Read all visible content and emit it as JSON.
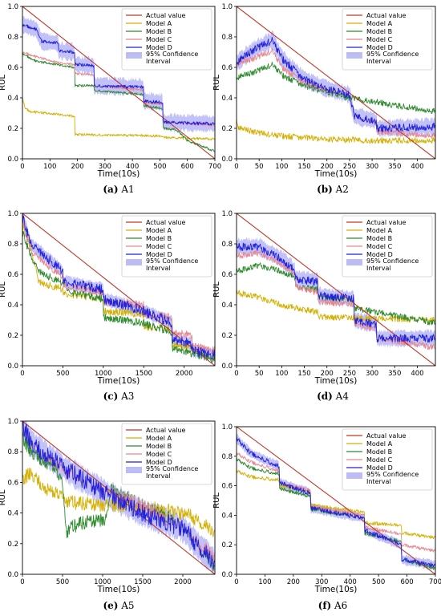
{
  "legend_labels": [
    "Actual value",
    "Model A",
    "Model B",
    "Model C",
    "Model D",
    "95% Confidence",
    "Interval"
  ],
  "series_colors": {
    "actual": "#c0392b",
    "model_a": "#d4b106",
    "model_b": "#2e8b2e",
    "model_c": "#e8868e",
    "model_d": "#2222dd",
    "ci": "#8f8ff2"
  },
  "chart_data": [
    {
      "type": "line",
      "panel": "a",
      "caption_label": "(a)",
      "caption_text": "A1",
      "xlabel": "Time(10s)",
      "ylabel": "RUL",
      "xlim": [
        0,
        700
      ],
      "ylim": [
        0,
        1.0
      ],
      "xticks": [
        0,
        100,
        200,
        300,
        400,
        500,
        600,
        700
      ],
      "yticks": [
        0.0,
        0.2,
        0.4,
        0.6,
        0.8,
        1.0
      ],
      "legend_position": "top-right",
      "noise": 0.008,
      "series": [
        {
          "key": "actual",
          "x": [
            0,
            700
          ],
          "y": [
            1.0,
            0.0
          ]
        },
        {
          "key": "model_a",
          "x": [
            0,
            10,
            30,
            190,
            190,
            510,
            510,
            700
          ],
          "y": [
            0.4,
            0.33,
            0.31,
            0.28,
            0.16,
            0.15,
            0.14,
            0.13
          ]
        },
        {
          "key": "model_b",
          "x": [
            0,
            50,
            190,
            190,
            260,
            260,
            440,
            440,
            510,
            510,
            560,
            600,
            700
          ],
          "y": [
            0.69,
            0.64,
            0.6,
            0.48,
            0.48,
            0.45,
            0.42,
            0.35,
            0.33,
            0.2,
            0.19,
            0.12,
            0.05
          ]
        },
        {
          "key": "model_c",
          "x": [
            0,
            50,
            130,
            190,
            190,
            260,
            260,
            440,
            440,
            510,
            510,
            700
          ],
          "y": [
            0.7,
            0.67,
            0.63,
            0.62,
            0.56,
            0.55,
            0.48,
            0.45,
            0.37,
            0.36,
            0.24,
            0.22
          ]
        },
        {
          "key": "model_d",
          "x": [
            0,
            50,
            70,
            130,
            130,
            190,
            190,
            260,
            260,
            440,
            440,
            510,
            510,
            700
          ],
          "y": [
            0.88,
            0.85,
            0.77,
            0.76,
            0.71,
            0.7,
            0.62,
            0.61,
            0.48,
            0.47,
            0.38,
            0.37,
            0.24,
            0.23
          ]
        }
      ],
      "ci": {
        "key": "ci",
        "x": [
          0,
          50,
          70,
          130,
          130,
          190,
          190,
          260,
          260,
          440,
          440,
          510,
          510,
          700
        ],
        "y": [
          0.88,
          0.85,
          0.77,
          0.76,
          0.71,
          0.7,
          0.62,
          0.61,
          0.48,
          0.47,
          0.38,
          0.37,
          0.24,
          0.23
        ],
        "half_width": 0.05
      }
    },
    {
      "type": "line",
      "panel": "b",
      "caption_label": "(b)",
      "caption_text": "A2",
      "xlabel": "Time(10s)",
      "ylabel": "RUL",
      "xlim": [
        0,
        440
      ],
      "ylim": [
        0,
        1.0
      ],
      "xticks": [
        0,
        50,
        100,
        150,
        200,
        250,
        300,
        350,
        400
      ],
      "yticks": [
        0.0,
        0.2,
        0.4,
        0.6,
        0.8,
        1.0
      ],
      "legend_position": "top-right",
      "noise": 0.02,
      "series": [
        {
          "key": "actual",
          "x": [
            0,
            440
          ],
          "y": [
            1.0,
            0.0
          ]
        },
        {
          "key": "model_a",
          "x": [
            0,
            5,
            50,
            100,
            200,
            300,
            440
          ],
          "y": [
            0.25,
            0.2,
            0.17,
            0.15,
            0.13,
            0.12,
            0.12
          ]
        },
        {
          "key": "model_b",
          "x": [
            0,
            40,
            80,
            100,
            150,
            200,
            250,
            300,
            350,
            400,
            440
          ],
          "y": [
            0.53,
            0.57,
            0.62,
            0.55,
            0.48,
            0.44,
            0.4,
            0.38,
            0.35,
            0.33,
            0.31
          ]
        },
        {
          "key": "model_c",
          "x": [
            0,
            40,
            80,
            100,
            150,
            200,
            250,
            260,
            310,
            310,
            440
          ],
          "y": [
            0.62,
            0.66,
            0.71,
            0.6,
            0.5,
            0.45,
            0.42,
            0.28,
            0.24,
            0.18,
            0.15
          ]
        },
        {
          "key": "model_d",
          "x": [
            0,
            40,
            80,
            100,
            150,
            200,
            250,
            260,
            310,
            310,
            440
          ],
          "y": [
            0.63,
            0.72,
            0.78,
            0.66,
            0.52,
            0.46,
            0.42,
            0.28,
            0.25,
            0.2,
            0.21
          ]
        }
      ],
      "ci": {
        "key": "ci",
        "x": [
          0,
          40,
          80,
          100,
          150,
          200,
          250,
          260,
          310,
          310,
          440
        ],
        "y": [
          0.63,
          0.72,
          0.78,
          0.66,
          0.52,
          0.46,
          0.42,
          0.28,
          0.25,
          0.2,
          0.21
        ],
        "half_width": 0.05
      }
    },
    {
      "type": "line",
      "panel": "c",
      "caption_label": "(c)",
      "caption_text": "A3",
      "xlabel": "Time(10s)",
      "ylabel": "RUL",
      "xlim": [
        0,
        2380
      ],
      "ylim": [
        0,
        1.0
      ],
      "xticks": [
        0,
        500,
        1000,
        1500,
        2000
      ],
      "yticks": [
        0.0,
        0.2,
        0.4,
        0.6,
        0.8,
        1.0
      ],
      "legend_position": "top-right",
      "noise": 0.025,
      "series": [
        {
          "key": "actual",
          "x": [
            0,
            2380
          ],
          "y": [
            1.0,
            0.0
          ]
        },
        {
          "key": "model_a",
          "x": [
            0,
            100,
            200,
            500,
            500,
            1000,
            1000,
            1500,
            1500,
            1850,
            1850,
            2100,
            2100,
            2380
          ],
          "y": [
            0.92,
            0.78,
            0.55,
            0.5,
            0.47,
            0.44,
            0.36,
            0.34,
            0.26,
            0.24,
            0.14,
            0.12,
            0.08,
            0.05
          ]
        },
        {
          "key": "model_b",
          "x": [
            0,
            100,
            200,
            500,
            600,
            1000,
            1000,
            1500,
            1850,
            1850,
            2100,
            2380
          ],
          "y": [
            0.88,
            0.72,
            0.62,
            0.54,
            0.48,
            0.44,
            0.32,
            0.28,
            0.22,
            0.12,
            0.08,
            0.04
          ]
        },
        {
          "key": "model_c",
          "x": [
            0,
            100,
            500,
            500,
            1000,
            1000,
            1500,
            1500,
            1850,
            1850,
            2100,
            2100,
            2380
          ],
          "y": [
            0.95,
            0.75,
            0.58,
            0.52,
            0.48,
            0.42,
            0.4,
            0.34,
            0.32,
            0.22,
            0.2,
            0.13,
            0.1
          ]
        },
        {
          "key": "model_d",
          "x": [
            0,
            100,
            500,
            500,
            1000,
            1000,
            1500,
            1850,
            1850,
            2100,
            2100,
            2380
          ],
          "y": [
            0.98,
            0.8,
            0.62,
            0.55,
            0.5,
            0.44,
            0.36,
            0.28,
            0.18,
            0.14,
            0.1,
            0.07
          ]
        }
      ],
      "ci": {
        "key": "ci",
        "x": [
          0,
          100,
          500,
          500,
          1000,
          1000,
          1500,
          1850,
          1850,
          2100,
          2100,
          2380
        ],
        "y": [
          0.98,
          0.8,
          0.62,
          0.55,
          0.5,
          0.44,
          0.36,
          0.28,
          0.18,
          0.14,
          0.1,
          0.07
        ],
        "half_width": 0.04
      }
    },
    {
      "type": "line",
      "panel": "d",
      "caption_label": "(d)",
      "caption_text": "A4",
      "xlabel": "Time(10s)",
      "ylabel": "RUL",
      "xlim": [
        0,
        440
      ],
      "ylim": [
        0,
        1.0
      ],
      "xticks": [
        0,
        50,
        100,
        150,
        200,
        250,
        300,
        350,
        400
      ],
      "yticks": [
        0.0,
        0.2,
        0.4,
        0.6,
        0.8,
        1.0
      ],
      "legend_position": "top-right",
      "noise": 0.02,
      "series": [
        {
          "key": "actual",
          "x": [
            0,
            440
          ],
          "y": [
            1.0,
            0.0
          ]
        },
        {
          "key": "model_a",
          "x": [
            0,
            50,
            100,
            180,
            180,
            440
          ],
          "y": [
            0.48,
            0.45,
            0.4,
            0.35,
            0.32,
            0.3
          ]
        },
        {
          "key": "model_b",
          "x": [
            0,
            50,
            100,
            130,
            130,
            180,
            180,
            260,
            260,
            440
          ],
          "y": [
            0.62,
            0.66,
            0.62,
            0.58,
            0.52,
            0.5,
            0.45,
            0.43,
            0.38,
            0.28
          ]
        },
        {
          "key": "model_c",
          "x": [
            0,
            50,
            100,
            130,
            130,
            180,
            180,
            260,
            260,
            310,
            310,
            440
          ],
          "y": [
            0.72,
            0.74,
            0.67,
            0.6,
            0.52,
            0.48,
            0.42,
            0.4,
            0.28,
            0.24,
            0.18,
            0.12
          ]
        },
        {
          "key": "model_d",
          "x": [
            0,
            50,
            100,
            130,
            130,
            180,
            180,
            260,
            260,
            310,
            310,
            440
          ],
          "y": [
            0.78,
            0.78,
            0.7,
            0.62,
            0.57,
            0.55,
            0.46,
            0.44,
            0.3,
            0.27,
            0.18,
            0.18
          ]
        }
      ],
      "ci": {
        "key": "ci",
        "x": [
          0,
          50,
          100,
          130,
          130,
          180,
          180,
          260,
          260,
          310,
          310,
          440
        ],
        "y": [
          0.78,
          0.78,
          0.7,
          0.62,
          0.57,
          0.55,
          0.46,
          0.44,
          0.3,
          0.27,
          0.18,
          0.18
        ],
        "half_width": 0.05
      }
    },
    {
      "type": "line",
      "panel": "e",
      "caption_label": "(e)",
      "caption_text": "A5",
      "xlabel": "Time(10s)",
      "ylabel": "RUL",
      "xlim": [
        0,
        2400
      ],
      "ylim": [
        0,
        1.0
      ],
      "xticks": [
        0,
        500,
        1000,
        1500,
        2000
      ],
      "yticks": [
        0.0,
        0.2,
        0.4,
        0.6,
        0.8,
        1.0
      ],
      "legend_position": "top-right",
      "noise": 0.045,
      "series": [
        {
          "key": "actual",
          "x": [
            0,
            2400
          ],
          "y": [
            1.0,
            0.0
          ]
        },
        {
          "key": "model_a",
          "x": [
            0,
            100,
            300,
            500,
            600,
            1000,
            1500,
            1800,
            2100,
            2400
          ],
          "y": [
            0.62,
            0.66,
            0.56,
            0.5,
            0.47,
            0.45,
            0.44,
            0.42,
            0.38,
            0.28
          ]
        },
        {
          "key": "model_b",
          "x": [
            0,
            100,
            400,
            500,
            550,
            600,
            700,
            900,
            1050,
            1100,
            1500,
            1800,
            2100,
            2400
          ],
          "y": [
            0.9,
            0.8,
            0.7,
            0.58,
            0.28,
            0.3,
            0.33,
            0.35,
            0.36,
            0.55,
            0.45,
            0.38,
            0.25,
            0.05
          ]
        },
        {
          "key": "model_c",
          "x": [
            0,
            100,
            500,
            1000,
            1500,
            2000,
            2200,
            2400
          ],
          "y": [
            0.98,
            0.85,
            0.68,
            0.55,
            0.45,
            0.3,
            0.2,
            0.12
          ]
        },
        {
          "key": "model_d",
          "x": [
            0,
            100,
            500,
            1000,
            1500,
            2000,
            2200,
            2400
          ],
          "y": [
            0.98,
            0.86,
            0.7,
            0.54,
            0.4,
            0.3,
            0.18,
            0.08
          ]
        }
      ],
      "ci": {
        "key": "ci",
        "x": [
          0,
          100,
          500,
          1000,
          1500,
          2000,
          2200,
          2400
        ],
        "y": [
          0.98,
          0.86,
          0.7,
          0.54,
          0.4,
          0.3,
          0.18,
          0.08
        ],
        "half_width": 0.08
      }
    },
    {
      "type": "line",
      "panel": "f",
      "caption_label": "(f)",
      "caption_text": "A6",
      "xlabel": "Time(10s)",
      "ylabel": "RUL",
      "xlim": [
        0,
        700
      ],
      "ylim": [
        0,
        1.0
      ],
      "xticks": [
        0,
        100,
        200,
        300,
        400,
        500,
        600,
        700
      ],
      "yticks": [
        0.0,
        0.2,
        0.4,
        0.6,
        0.8,
        1.0
      ],
      "legend_position": "top-right",
      "noise": 0.012,
      "series": [
        {
          "key": "actual",
          "x": [
            0,
            700
          ],
          "y": [
            1.0,
            0.0
          ]
        },
        {
          "key": "model_a",
          "x": [
            0,
            50,
            150,
            150,
            260,
            260,
            450,
            450,
            580,
            580,
            700
          ],
          "y": [
            0.7,
            0.66,
            0.64,
            0.6,
            0.56,
            0.47,
            0.42,
            0.35,
            0.33,
            0.28,
            0.25
          ]
        },
        {
          "key": "model_b",
          "x": [
            0,
            50,
            150,
            150,
            260,
            260,
            450,
            450,
            580,
            580,
            700
          ],
          "y": [
            0.78,
            0.72,
            0.68,
            0.58,
            0.53,
            0.44,
            0.38,
            0.28,
            0.22,
            0.1,
            0.04
          ]
        },
        {
          "key": "model_c",
          "x": [
            0,
            50,
            150,
            150,
            260,
            260,
            450,
            450,
            580,
            580,
            700
          ],
          "y": [
            0.82,
            0.76,
            0.7,
            0.62,
            0.57,
            0.46,
            0.4,
            0.32,
            0.27,
            0.2,
            0.16
          ]
        },
        {
          "key": "model_d",
          "x": [
            0,
            50,
            150,
            150,
            260,
            260,
            450,
            450,
            580,
            580,
            700
          ],
          "y": [
            0.92,
            0.82,
            0.73,
            0.62,
            0.55,
            0.45,
            0.38,
            0.3,
            0.2,
            0.1,
            0.06
          ]
        }
      ],
      "ci": {
        "key": "ci",
        "x": [
          0,
          50,
          150,
          150,
          260,
          260,
          450,
          450,
          580,
          580,
          700
        ],
        "y": [
          0.92,
          0.82,
          0.73,
          0.62,
          0.55,
          0.45,
          0.38,
          0.3,
          0.2,
          0.1,
          0.06
        ],
        "half_width": 0.03
      }
    }
  ]
}
